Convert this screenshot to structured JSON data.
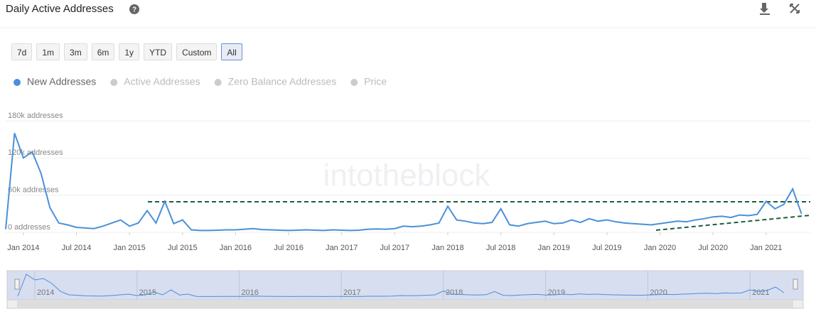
{
  "chart_data": {
    "type": "line",
    "title": "Daily Active Addresses",
    "range_buttons": [
      "7d",
      "1m",
      "3m",
      "6m",
      "1y",
      "YTD",
      "Custom",
      "All"
    ],
    "selected_range": "All",
    "hidden_series": [
      "Active Addresses",
      "Zero Balance Addresses",
      "Price"
    ],
    "watermark": "intotheblock",
    "x": [
      "2013-11",
      "2013-12",
      "2014-01",
      "2014-02",
      "2014-03",
      "2014-04",
      "2014-05",
      "2014-06",
      "2014-07",
      "2014-08",
      "2014-09",
      "2014-10",
      "2014-11",
      "2014-12",
      "2015-01",
      "2015-02",
      "2015-03",
      "2015-04",
      "2015-05",
      "2015-06",
      "2015-07",
      "2015-08",
      "2015-09",
      "2015-10",
      "2015-11",
      "2015-12",
      "2016-01",
      "2016-02",
      "2016-03",
      "2016-04",
      "2016-05",
      "2016-06",
      "2016-07",
      "2016-08",
      "2016-09",
      "2016-10",
      "2016-11",
      "2016-12",
      "2017-01",
      "2017-02",
      "2017-03",
      "2017-04",
      "2017-05",
      "2017-06",
      "2017-07",
      "2017-08",
      "2017-09",
      "2017-10",
      "2017-11",
      "2017-12",
      "2018-01",
      "2018-02",
      "2018-03",
      "2018-04",
      "2018-05",
      "2018-06",
      "2018-07",
      "2018-08",
      "2018-09",
      "2018-10",
      "2018-11",
      "2018-12",
      "2019-01",
      "2019-02",
      "2019-03",
      "2019-04",
      "2019-05",
      "2019-06",
      "2019-07",
      "2019-08",
      "2019-09",
      "2019-10",
      "2019-11",
      "2019-12",
      "2020-01",
      "2020-02",
      "2020-03",
      "2020-04",
      "2020-05",
      "2020-06",
      "2020-07",
      "2020-08",
      "2020-09",
      "2020-10",
      "2020-11",
      "2020-12",
      "2021-01",
      "2021-02",
      "2021-03",
      "2021-04",
      "2021-05"
    ],
    "series": [
      {
        "name": "New Addresses",
        "color": "#4a90d9",
        "values": [
          5000,
          160000,
          120000,
          130000,
          95000,
          40000,
          15000,
          12000,
          8000,
          7000,
          6000,
          10000,
          15000,
          20000,
          10000,
          15000,
          35000,
          15000,
          50000,
          14000,
          20000,
          4000,
          3000,
          3000,
          3500,
          4000,
          4000,
          5000,
          6000,
          4500,
          4000,
          3500,
          3000,
          3500,
          4000,
          3500,
          3000,
          4000,
          3500,
          3000,
          3500,
          5000,
          5500,
          5000,
          6000,
          10000,
          9000,
          10000,
          12000,
          15000,
          42000,
          20000,
          18000,
          15000,
          14000,
          16000,
          38000,
          12000,
          10000,
          14000,
          16000,
          18000,
          14000,
          15000,
          20000,
          16000,
          22000,
          18000,
          20000,
          17000,
          15000,
          14000,
          13000,
          12000,
          14000,
          16000,
          18000,
          17000,
          20000,
          22000,
          25000,
          26000,
          24000,
          28000,
          27000,
          29000,
          50000,
          38000,
          45000,
          70000,
          30000
        ]
      }
    ],
    "xlim": [
      "2013-11",
      "2021-06"
    ],
    "xticks": [
      {
        "value": "2014-01",
        "label": "Jan 2014"
      },
      {
        "value": "2014-07",
        "label": "Jul 2014"
      },
      {
        "value": "2015-01",
        "label": "Jan 2015"
      },
      {
        "value": "2015-07",
        "label": "Jul 2015"
      },
      {
        "value": "2016-01",
        "label": "Jan 2016"
      },
      {
        "value": "2016-07",
        "label": "Jul 2016"
      },
      {
        "value": "2017-01",
        "label": "Jan 2017"
      },
      {
        "value": "2017-07",
        "label": "Jul 2017"
      },
      {
        "value": "2018-01",
        "label": "Jan 2018"
      },
      {
        "value": "2018-07",
        "label": "Jul 2018"
      },
      {
        "value": "2019-01",
        "label": "Jan 2019"
      },
      {
        "value": "2019-07",
        "label": "Jul 2019"
      },
      {
        "value": "2020-01",
        "label": "Jan 2020"
      },
      {
        "value": "2020-07",
        "label": "Jul 2020"
      },
      {
        "value": "2021-01",
        "label": "Jan 2021"
      }
    ],
    "ylim": [
      0,
      180000
    ],
    "yticks": [
      {
        "value": 0,
        "label": "0 addresses"
      },
      {
        "value": 60000,
        "label": "60k addresses"
      },
      {
        "value": 120000,
        "label": "120k addresses"
      },
      {
        "value": 180000,
        "label": "180k addresses"
      }
    ],
    "grid": true,
    "navigator_ticks": [
      {
        "value": "2014-01",
        "label": "2014"
      },
      {
        "value": "2015-01",
        "label": "2015"
      },
      {
        "value": "2016-01",
        "label": "2016"
      },
      {
        "value": "2017-01",
        "label": "2017"
      },
      {
        "value": "2018-01",
        "label": "2018"
      },
      {
        "value": "2019-01",
        "label": "2019"
      },
      {
        "value": "2020-01",
        "label": "2020"
      },
      {
        "value": "2021-01",
        "label": "2021"
      }
    ]
  }
}
